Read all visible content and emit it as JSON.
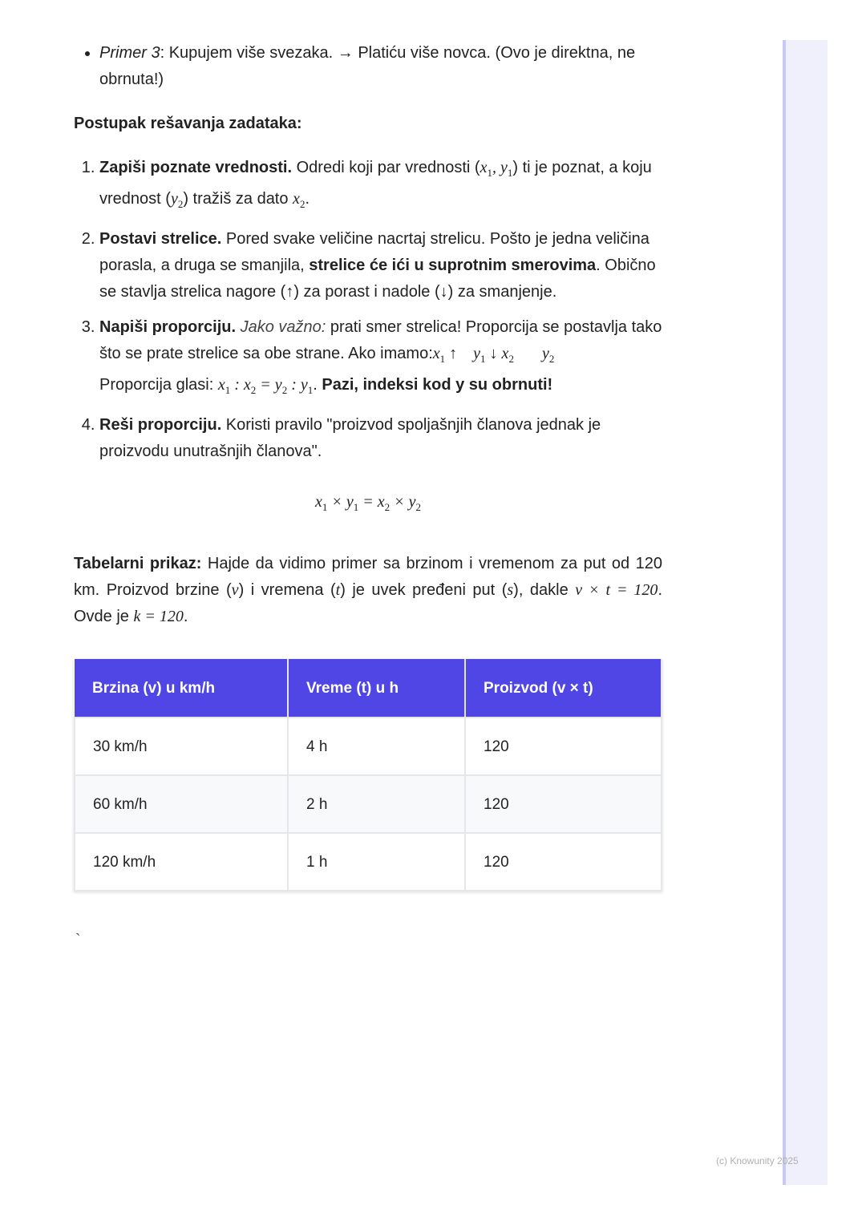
{
  "bullet": {
    "label": "Primer 3",
    "text": ": Kupujem više svezaka. → Platiću više novca. (Ovo je direktna, ne obrnuta!)"
  },
  "heading": "Postupak rešavanja zadataka:",
  "steps": [
    {
      "bold": "Zapiši poznate vrednosti.",
      "t1": " Odredi koji par vrednosti (",
      "t2": ") ti je poznat, a koju vrednost (",
      "t3": ") tražiš za dato ",
      "t4": "."
    },
    {
      "bold": "Postavi strelice.",
      "t1": " Pored svake veličine nacrtaj strelicu. Pošto je jedna veličina porasla, a druga se smanjila, ",
      "bold2": "strelice će ići u suprotnim smerovima",
      "t2": ". Obično se stavlja strelica nagore (↑) za porast i nadole (↓) za smanjenje."
    },
    {
      "bold": "Napiši proporciju.",
      "italic": " Jako važno:",
      "t1": " prati smer strelica! Proporcija se postavlja tako što se prate strelice sa obe strane. Ako imamo:",
      "t2": "Proporcija glasi: ",
      "bold2": " Pazi, indeksi kod y su obrnuti!"
    },
    {
      "bold": "Reši proporciju.",
      "t1": " Koristi pravilo \"proizvod spoljašnjih članova jednak je proizvodu unutrašnjih članova\"."
    }
  ],
  "tabelarni": {
    "bold": "Tabelarni prikaz:",
    "t1": " Hajde da vidimo primer sa brzinom i vremenom za put od 120 km. Proizvod brzine (",
    "t2": ") i vremena (",
    "t3": ") je uvek pređeni put (",
    "t4": "), dakle ",
    "t5": ". Ovde je "
  },
  "table": {
    "headers": [
      "Brzina (v) u km/h",
      "Vreme (t) u h",
      "Proizvod (v × t)"
    ],
    "rows": [
      [
        "30 km/h",
        "4 h",
        "120"
      ],
      [
        "60 km/h",
        "2 h",
        "120"
      ],
      [
        "120 km/h",
        "1 h",
        "120"
      ]
    ],
    "header_color": "#4f46e5"
  },
  "stray": "`",
  "footer": "(c) Knowunity 2025"
}
